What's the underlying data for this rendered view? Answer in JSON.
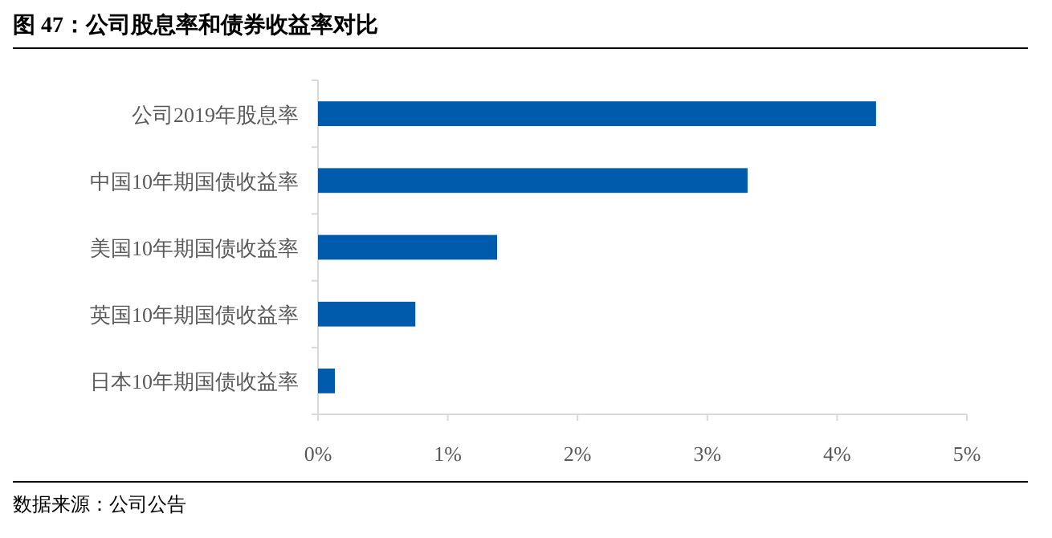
{
  "chart_data": {
    "type": "bar",
    "orientation": "horizontal",
    "title": "图 47：公司股息率和债券收益率对比",
    "categories": [
      "公司2019年股息率",
      "中国10年期国债收益率",
      "美国10年期国债收益率",
      "英国10年期国债收益率",
      "日本10年期国债收益率"
    ],
    "values": [
      4.3,
      3.31,
      1.38,
      0.75,
      0.13
    ],
    "color": "#005bac",
    "xlim": [
      0,
      5
    ],
    "xticks": [
      {
        "value": 0,
        "label": "0%"
      },
      {
        "value": 1,
        "label": "1%"
      },
      {
        "value": 2,
        "label": "2%"
      },
      {
        "value": 3,
        "label": "3%"
      },
      {
        "value": 4,
        "label": "4%"
      },
      {
        "value": 5,
        "label": "5%"
      }
    ],
    "grid": false,
    "annotations": [
      "数据来源：公司公告"
    ]
  }
}
